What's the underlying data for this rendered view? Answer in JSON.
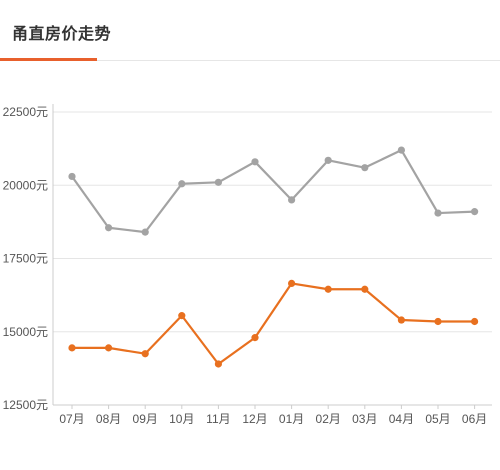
{
  "header": {
    "title": "甬直房价走势",
    "accent_color": "#e8602c"
  },
  "chart_data": {
    "type": "line",
    "categories": [
      "07月",
      "08月",
      "09月",
      "10月",
      "11月",
      "12月",
      "01月",
      "02月",
      "03月",
      "04月",
      "05月",
      "06月"
    ],
    "series": [
      {
        "color": "#a3a3a3",
        "values": [
          20300,
          18550,
          18400,
          20050,
          20100,
          20800,
          19500,
          20850,
          20600,
          21200,
          19050,
          19100
        ]
      },
      {
        "color": "#e8701f",
        "values": [
          14450,
          14450,
          14250,
          15550,
          13900,
          14800,
          16650,
          16450,
          16450,
          15400,
          15350,
          15350
        ]
      }
    ],
    "yticks": [
      "12500元",
      "15000元",
      "17500元",
      "20000元",
      "22500元"
    ],
    "ytick_values": [
      12500,
      15000,
      17500,
      20000,
      22500
    ],
    "ylim": [
      12500,
      22500
    ],
    "grid": "horizontal",
    "xlabel": "",
    "ylabel": ""
  }
}
